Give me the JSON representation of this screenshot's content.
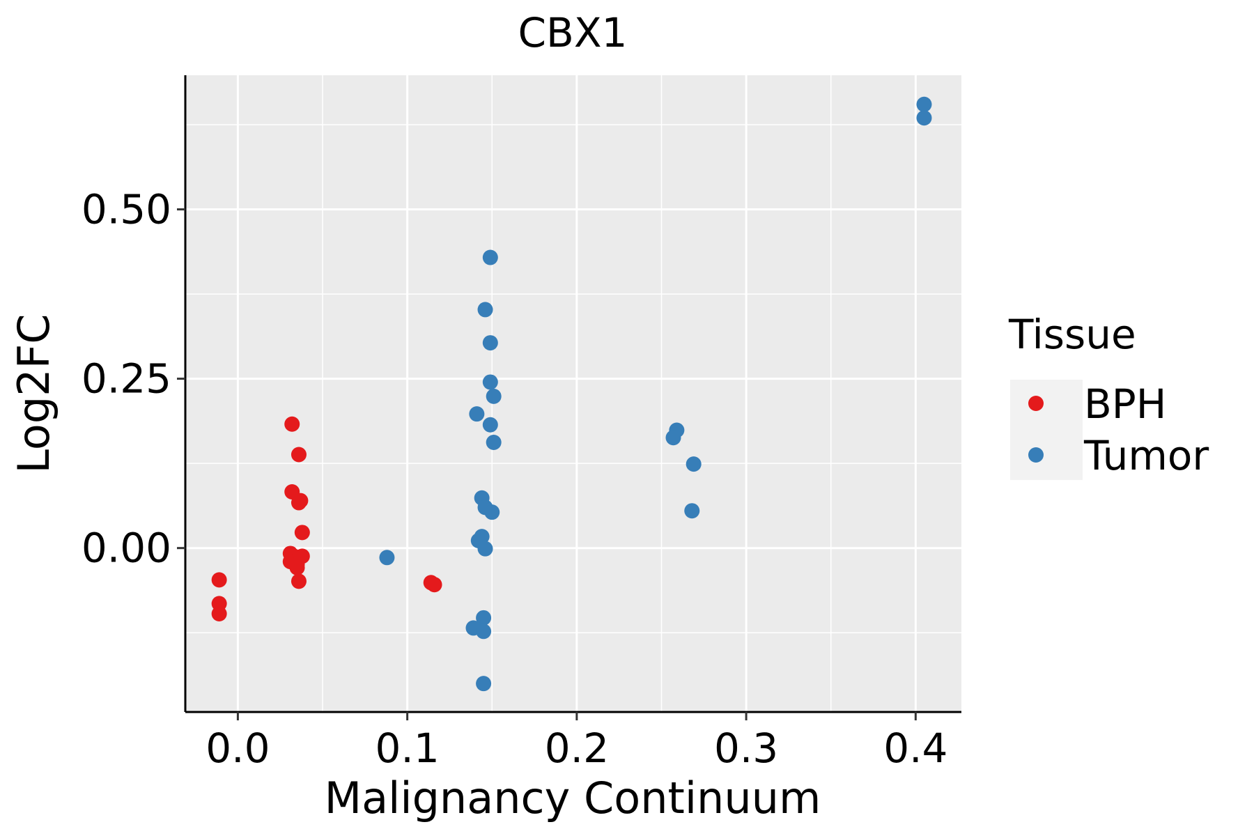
{
  "chart_data": {
    "type": "scatter",
    "title": "CBX1",
    "xlabel": "Malignancy Continuum",
    "ylabel": "Log2FC",
    "xlim": [
      -0.031,
      0.427
    ],
    "ylim": [
      -0.242,
      0.698
    ],
    "x_ticks": [
      {
        "value": 0.0,
        "label": "0.0"
      },
      {
        "value": 0.1,
        "label": "0.1"
      },
      {
        "value": 0.2,
        "label": "0.2"
      },
      {
        "value": 0.3,
        "label": "0.3"
      },
      {
        "value": 0.4,
        "label": "0.4"
      }
    ],
    "y_ticks": [
      {
        "value": 0.0,
        "label": "0.00"
      },
      {
        "value": 0.25,
        "label": "0.25"
      },
      {
        "value": 0.5,
        "label": "0.50"
      }
    ],
    "x_minor": [
      0.05,
      0.15,
      0.25,
      0.35
    ],
    "y_minor": [
      -0.125,
      0.125,
      0.375,
      0.625
    ],
    "grid": true,
    "panel_color": "#EBEBEB",
    "grid_color": "#FFFFFF",
    "legend": {
      "title": "Tissue",
      "position": "right"
    },
    "series": [
      {
        "name": "BPH",
        "color": "#E41A1C",
        "points": [
          [
            -0.011,
            -0.047
          ],
          [
            -0.011,
            -0.082
          ],
          [
            -0.011,
            -0.097
          ],
          [
            0.032,
            0.183
          ],
          [
            0.036,
            0.138
          ],
          [
            0.032,
            0.083
          ],
          [
            0.037,
            0.07
          ],
          [
            0.036,
            0.067
          ],
          [
            0.038,
            0.023
          ],
          [
            0.031,
            -0.008
          ],
          [
            0.033,
            -0.012
          ],
          [
            0.038,
            -0.012
          ],
          [
            0.031,
            -0.02
          ],
          [
            0.035,
            -0.024
          ],
          [
            0.035,
            -0.029
          ],
          [
            0.036,
            -0.049
          ],
          [
            0.114,
            -0.051
          ],
          [
            0.116,
            -0.054
          ]
        ]
      },
      {
        "name": "Tumor",
        "color": "#377EB8",
        "points": [
          [
            0.088,
            -0.014
          ],
          [
            0.149,
            0.429
          ],
          [
            0.146,
            0.352
          ],
          [
            0.149,
            0.303
          ],
          [
            0.149,
            0.245
          ],
          [
            0.151,
            0.224
          ],
          [
            0.141,
            0.198
          ],
          [
            0.149,
            0.182
          ],
          [
            0.151,
            0.156
          ],
          [
            0.144,
            0.074
          ],
          [
            0.146,
            0.06
          ],
          [
            0.15,
            0.053
          ],
          [
            0.144,
            0.017
          ],
          [
            0.142,
            0.011
          ],
          [
            0.146,
            -0.001
          ],
          [
            0.145,
            -0.103
          ],
          [
            0.139,
            -0.118
          ],
          [
            0.145,
            -0.123
          ],
          [
            0.145,
            -0.2
          ],
          [
            0.259,
            0.174
          ],
          [
            0.257,
            0.163
          ],
          [
            0.269,
            0.124
          ],
          [
            0.268,
            0.055
          ],
          [
            0.405,
            0.655
          ],
          [
            0.405,
            0.635
          ]
        ]
      }
    ]
  }
}
